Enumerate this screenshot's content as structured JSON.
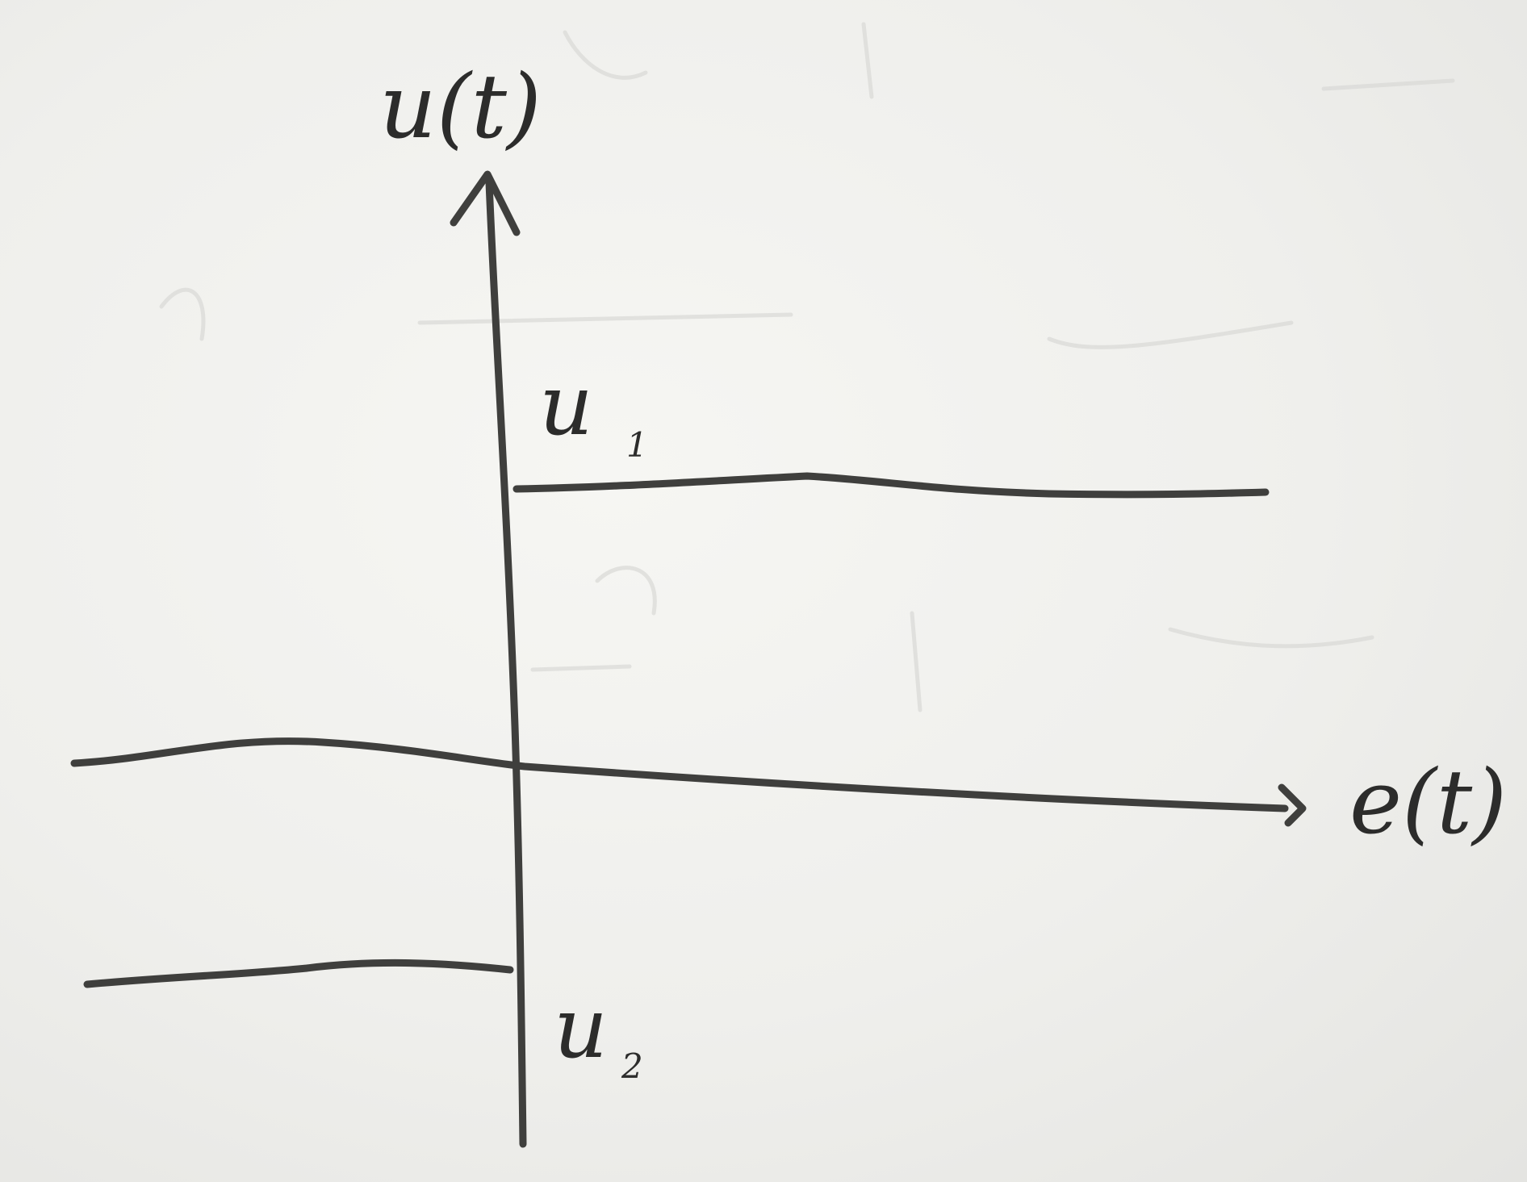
{
  "diagram": {
    "y_axis_label": "u(t)",
    "x_axis_label": "e(t)",
    "upper_level_label": {
      "letter": "u",
      "subscript": "1"
    },
    "lower_level_label": {
      "letter": "u",
      "subscript": "2"
    }
  },
  "colors": {
    "ink": "#3f3f3d",
    "paper": "#f2f2ef"
  }
}
